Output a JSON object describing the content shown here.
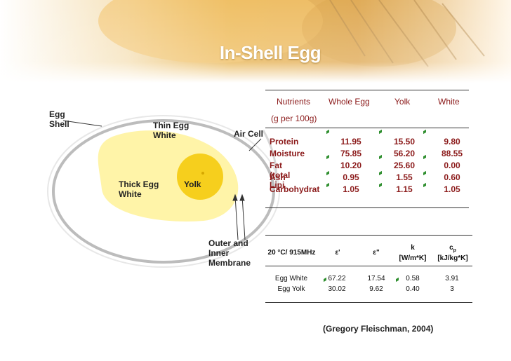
{
  "title": "In-Shell Egg",
  "egg_labels": {
    "shell": "Egg\nShell",
    "thin_white": "Thin Egg\nWhite",
    "air_cell": "Air Cell",
    "thick_white": "Thick Egg\nWhite",
    "yolk": "Yolk",
    "membrane": "Outer and\nInner\nMembrane"
  },
  "nutrients": {
    "headers": [
      "Nutrients",
      "Whole Egg",
      "Yolk",
      "White"
    ],
    "unit": "(g per 100g)",
    "rows": [
      {
        "name": "Protein",
        "whole": "11.95",
        "yolk": "15.50",
        "white": "9.80"
      },
      {
        "name": "Moisture",
        "whole": "75.85",
        "yolk": "56.20",
        "white": "88.55"
      },
      {
        "name": "Fat (total Lipi",
        "whole": "10.20",
        "yolk": "25.60",
        "white": "0.00"
      },
      {
        "name": "Ash",
        "whole": "0.95",
        "yolk": "1.55",
        "white": "0.60"
      },
      {
        "name": "Carbohydrat",
        "whole": "1.05",
        "yolk": "1.15",
        "white": "1.05"
      }
    ]
  },
  "dielectric": {
    "condition": "20 °C/ 915MHz",
    "col_e1": "ε'",
    "col_e2": "ε\"",
    "col_k": "k",
    "col_k_unit": "[W/m*K]",
    "col_cp": "c",
    "col_cp_sub": "p",
    "col_cp_unit": "[kJ/kg*K]",
    "rows": [
      {
        "name": "Egg White",
        "e1": "67.22",
        "e2": "17.54",
        "k": "0.58",
        "cp": "3.91"
      },
      {
        "name": "Egg Yolk",
        "e1": "30.02",
        "e2": "9.62",
        "k": "0.40",
        "cp": "3"
      }
    ]
  },
  "citation": "(Gregory Fleischman, 2004)",
  "colors": {
    "data_text": "#8b1a1a",
    "tick": "#2f8f2f",
    "yolk": "#f6cf1d",
    "white": "#fff4a8"
  }
}
